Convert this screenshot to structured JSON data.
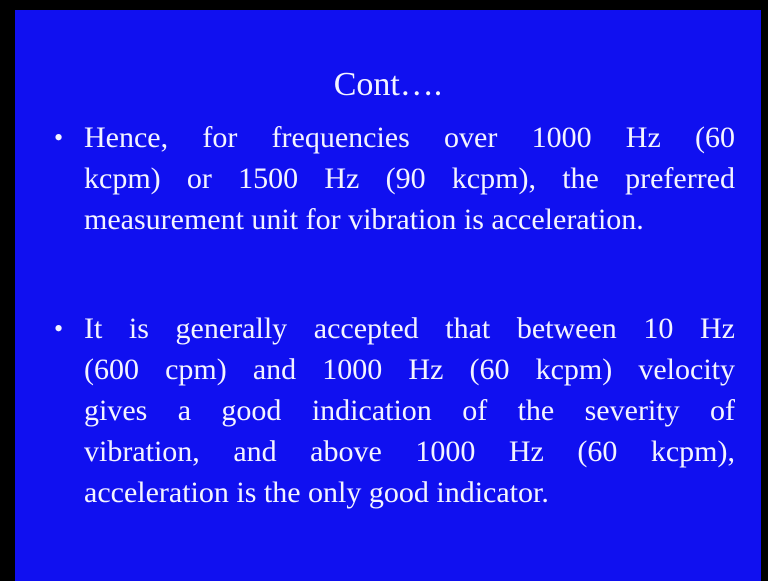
{
  "slide": {
    "title": "Cont….",
    "bullets": [
      {
        "lines": [
          "Hence, for frequencies over 1000 Hz (60",
          "kcpm) or 1500 Hz (90 kcpm), the preferred",
          "measurement unit for vibration is acceleration."
        ]
      },
      {
        "lines": [
          "It is generally accepted that between 10 Hz",
          "(600 cpm) and 1000 Hz (60 kcpm) velocity",
          "gives a good indication of the severity of",
          "vibration, and above 1000 Hz (60 kcpm),",
          "acceleration is the only good indicator."
        ]
      }
    ]
  }
}
